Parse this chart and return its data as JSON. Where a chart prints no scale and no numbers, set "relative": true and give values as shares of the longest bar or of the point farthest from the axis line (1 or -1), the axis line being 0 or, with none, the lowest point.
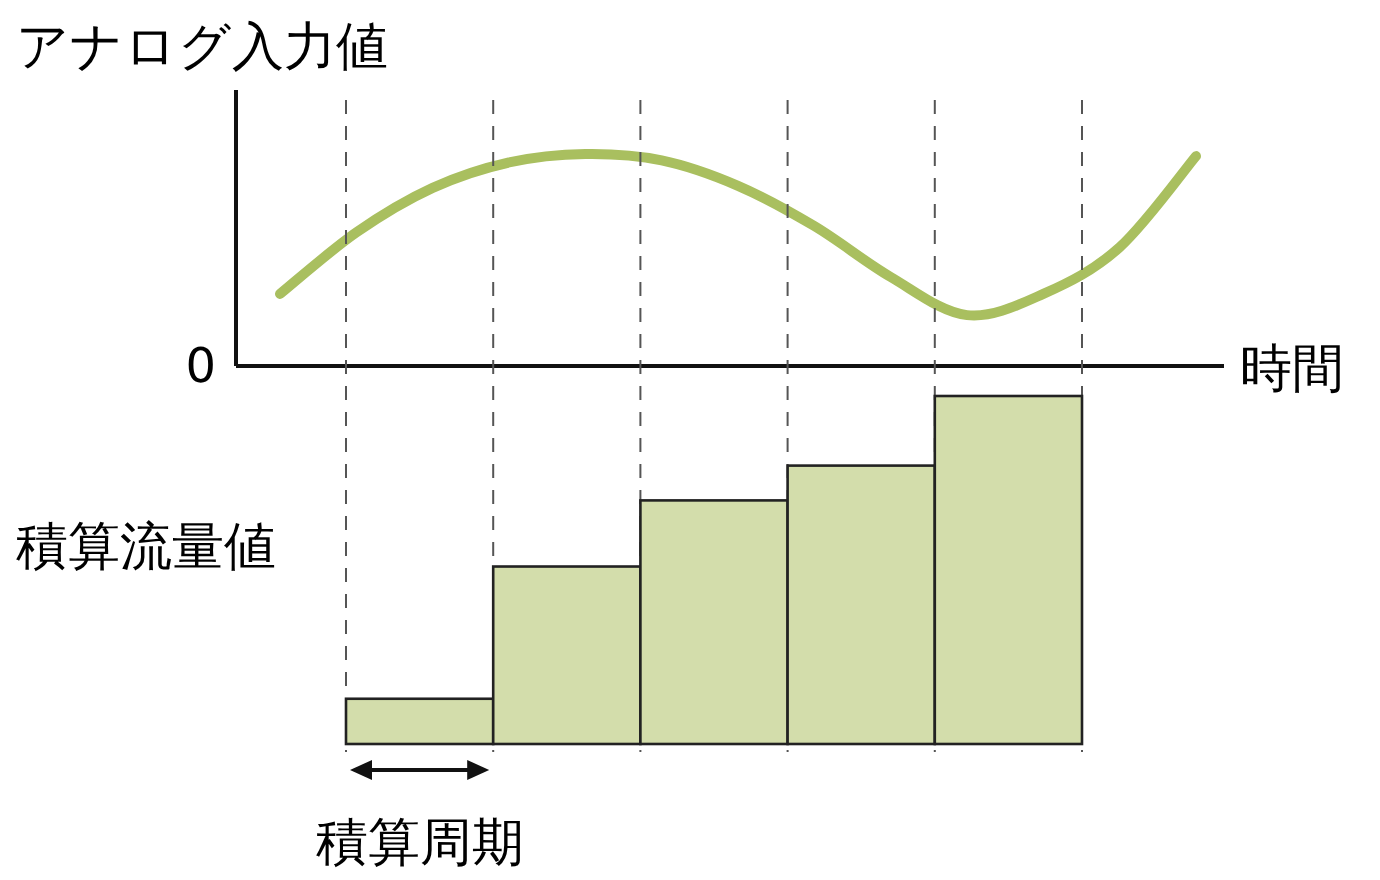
{
  "chart_data": [
    {
      "type": "line",
      "ylabel": "アナログ入力値",
      "xlabel": "時間",
      "relative": true,
      "color": "#a9bf5f",
      "marker": "none",
      "line_style": "solid",
      "annotations": [
        "0"
      ],
      "categories": [
        null,
        null,
        null,
        null,
        null,
        null,
        null,
        null,
        null,
        null,
        null,
        null,
        null
      ],
      "values": [
        0.34,
        0.63,
        0.84,
        0.96,
        1.0,
        0.97,
        0.85,
        0.66,
        0.42,
        0.24,
        0.34,
        0.56,
        0.99
      ]
    },
    {
      "type": "bar",
      "ylabel": "積算流量値",
      "relative": true,
      "color": "#d3ddab",
      "grid": "x",
      "categories": [
        null,
        null,
        null,
        null,
        null
      ],
      "values": [
        0.13,
        0.51,
        0.7,
        0.8,
        1.0
      ],
      "annotations": [
        "積算周期"
      ]
    }
  ]
}
